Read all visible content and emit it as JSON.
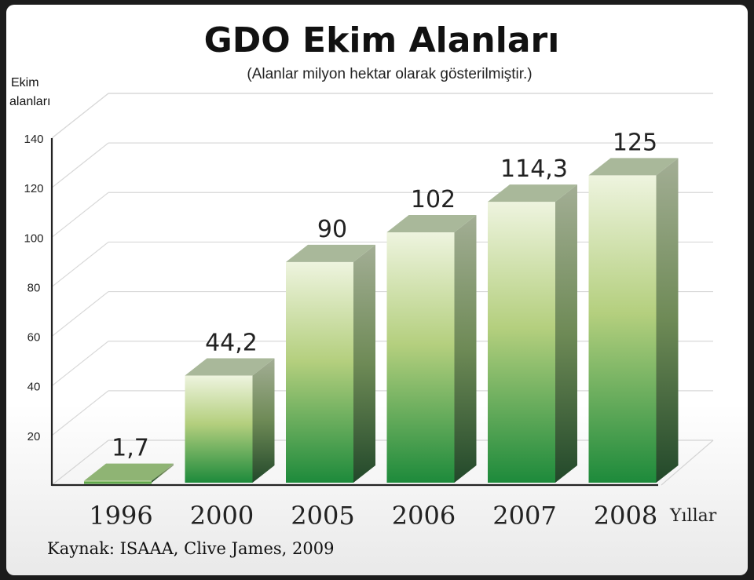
{
  "chart_data": {
    "type": "bar",
    "title": "GDO Ekim Alanları",
    "subtitle": "(Alanlar milyon hektar olarak gösterilmiştir.)",
    "ylabel_line1": "Ekim",
    "ylabel_line2": "alanları",
    "xlabel": "Yıllar",
    "categories": [
      "1996",
      "2000",
      "2005",
      "2006",
      "2007",
      "2008"
    ],
    "values": [
      1.7,
      44.2,
      90,
      102,
      114.3,
      125
    ],
    "value_labels": [
      "1,7",
      "44,2",
      "90",
      "102",
      "114,3",
      "125"
    ],
    "ylim": [
      0,
      140
    ],
    "yticks": [
      20,
      40,
      60,
      80,
      100,
      120,
      140
    ],
    "grid": true,
    "style": "3d-bar",
    "colors": {
      "bar_top": "#e9f1d8",
      "bar_mid": "#a8c870",
      "bar_bottom": "#1f8a3a",
      "bar_side_top": "#9aa88a",
      "bar_side_bottom": "#244a2c",
      "bar_cap": "#a9b89a"
    },
    "source": "Kaynak: ISAAA, Clive James, 2009"
  }
}
